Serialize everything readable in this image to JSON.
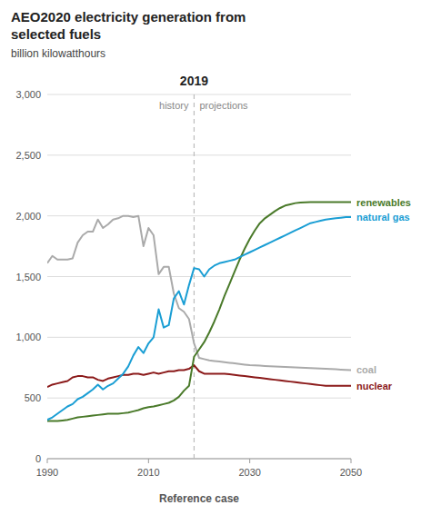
{
  "chart_data": {
    "type": "line",
    "title": "AEO2020 electricity generation from\nselected fuels",
    "subtitle": "billion kilowatthours",
    "x_label": "Reference case",
    "annotations": [
      {
        "x": 2019,
        "text": "2019"
      },
      {
        "text": "history",
        "side": "left"
      },
      {
        "text": "projections",
        "side": "right"
      }
    ],
    "xlim": [
      1990,
      2050
    ],
    "ylim": [
      0,
      3000
    ],
    "xticks": [
      1990,
      2010,
      2030,
      2050
    ],
    "yticks": [
      0,
      500,
      {
        "value": 1000,
        "label": "1,000"
      },
      {
        "value": 1500,
        "label": "1,500"
      },
      {
        "value": 2000,
        "label": "2,000"
      },
      {
        "value": 2500,
        "label": "2,500"
      },
      {
        "value": 3000,
        "label": "3,000"
      }
    ],
    "grid": true,
    "x": [
      1990,
      1991,
      1992,
      1993,
      1994,
      1995,
      1996,
      1997,
      1998,
      1999,
      2000,
      2001,
      2002,
      2003,
      2004,
      2005,
      2006,
      2007,
      2008,
      2009,
      2010,
      2011,
      2012,
      2013,
      2014,
      2015,
      2016,
      2017,
      2018,
      2019,
      2020,
      2021,
      2022,
      2023,
      2024,
      2025,
      2026,
      2027,
      2028,
      2029,
      2030,
      2031,
      2032,
      2033,
      2034,
      2035,
      2036,
      2037,
      2038,
      2039,
      2040,
      2041,
      2042,
      2043,
      2044,
      2045,
      2046,
      2047,
      2048,
      2049,
      2050
    ],
    "series": [
      {
        "name": "coal",
        "color": "#aaaaaa",
        "values": [
          1610,
          1670,
          1640,
          1640,
          1640,
          1650,
          1780,
          1840,
          1870,
          1870,
          1970,
          1900,
          1930,
          1970,
          1980,
          2000,
          2000,
          1990,
          2000,
          1750,
          1900,
          1840,
          1520,
          1580,
          1580,
          1360,
          1240,
          1210,
          1150,
          950,
          830,
          820,
          810,
          805,
          800,
          795,
          790,
          785,
          780,
          775,
          770,
          768,
          766,
          764,
          762,
          760,
          758,
          756,
          754,
          752,
          750,
          748,
          746,
          744,
          742,
          740,
          738,
          736,
          734,
          732,
          730
        ]
      },
      {
        "name": "nuclear",
        "color": "#8b1a1a",
        "values": [
          590,
          610,
          620,
          630,
          640,
          670,
          680,
          680,
          670,
          670,
          650,
          640,
          660,
          670,
          680,
          690,
          690,
          700,
          700,
          690,
          700,
          710,
          700,
          710,
          720,
          720,
          730,
          730,
          740,
          770,
          720,
          700,
          700,
          700,
          700,
          700,
          695,
          690,
          685,
          680,
          675,
          670,
          665,
          660,
          655,
          650,
          645,
          640,
          635,
          630,
          625,
          620,
          615,
          610,
          605,
          600,
          600,
          600,
          600,
          600,
          600
        ]
      },
      {
        "name": "renewables",
        "color": "#4a7a2a",
        "values": [
          310,
          310,
          310,
          315,
          320,
          330,
          340,
          345,
          350,
          355,
          360,
          365,
          370,
          370,
          370,
          375,
          380,
          390,
          400,
          415,
          425,
          430,
          440,
          450,
          460,
          480,
          510,
          560,
          600,
          840,
          900,
          960,
          1040,
          1130,
          1230,
          1340,
          1440,
          1540,
          1640,
          1730,
          1810,
          1880,
          1940,
          1980,
          2010,
          2040,
          2065,
          2085,
          2095,
          2105,
          2110,
          2112,
          2113,
          2113,
          2113,
          2113,
          2113,
          2113,
          2113,
          2113,
          2113
        ]
      },
      {
        "name": "natural gas",
        "color": "#1a9ed4",
        "values": [
          320,
          340,
          370,
          400,
          430,
          450,
          490,
          510,
          540,
          570,
          610,
          570,
          600,
          620,
          660,
          700,
          760,
          850,
          920,
          870,
          950,
          1000,
          1230,
          1080,
          1100,
          1320,
          1380,
          1270,
          1430,
          1570,
          1560,
          1500,
          1560,
          1590,
          1610,
          1620,
          1630,
          1640,
          1660,
          1680,
          1700,
          1720,
          1740,
          1760,
          1780,
          1800,
          1820,
          1840,
          1860,
          1880,
          1900,
          1920,
          1940,
          1950,
          1960,
          1970,
          1975,
          1980,
          1985,
          1990,
          1990
        ]
      }
    ]
  }
}
